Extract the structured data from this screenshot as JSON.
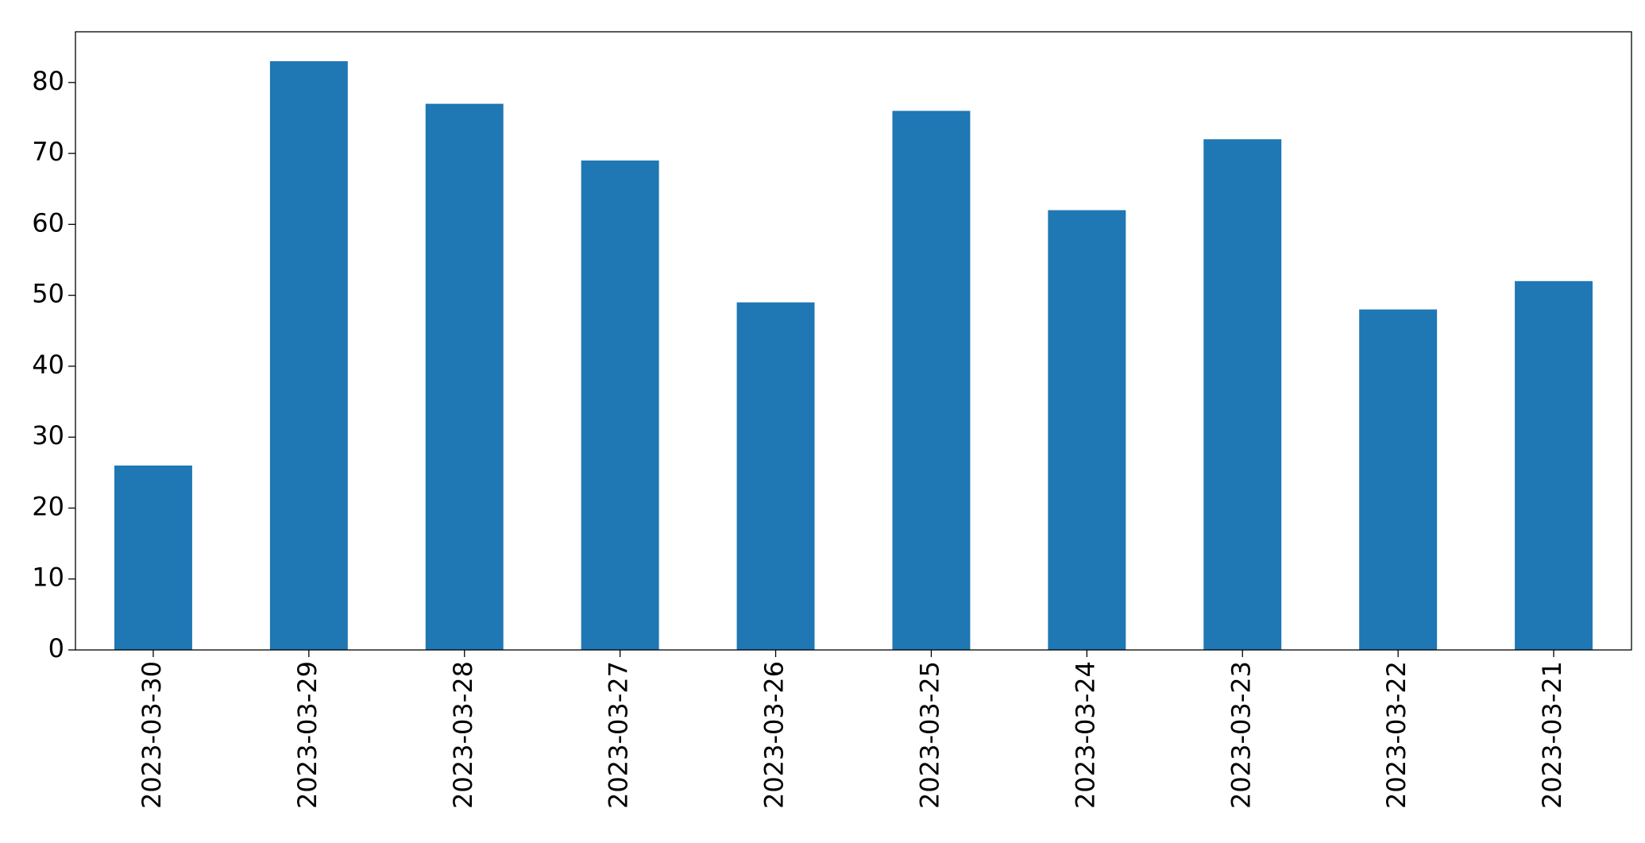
{
  "chart_data": {
    "type": "bar",
    "categories": [
      "2023-03-30",
      "2023-03-29",
      "2023-03-28",
      "2023-03-27",
      "2023-03-26",
      "2023-03-25",
      "2023-03-24",
      "2023-03-23",
      "2023-03-22",
      "2023-03-21"
    ],
    "values": [
      26,
      83,
      77,
      69,
      49,
      76,
      62,
      72,
      48,
      52
    ],
    "color": "#1f77b4",
    "ylim": [
      0,
      87.15
    ],
    "yticks": [
      0,
      10,
      20,
      30,
      40,
      50,
      60,
      70,
      80
    ],
    "grid": false
  }
}
